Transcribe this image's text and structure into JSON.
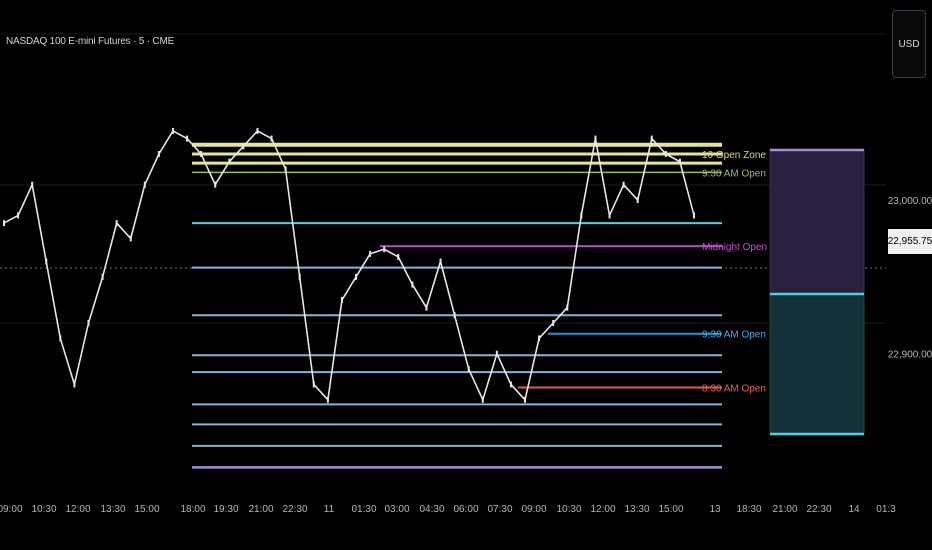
{
  "header": {
    "symbol": "NASDAQ 100 E-mini Futures · 5 · CME"
  },
  "currency_button": "USD",
  "last_price_label": "22,955.75",
  "colors": {
    "background": "#000000",
    "candles": "#e6e6e6",
    "grid": "#1a1a1a",
    "yellow_zone": "#e8e39a",
    "cyan": "#4dd0e1",
    "steel_blue": "#8fb0d8",
    "purple": "#a68ddb",
    "magenta": "#c041c9",
    "blue_open": "#2f8fd8",
    "red_open": "#e05a4a",
    "box_upper": "#2a1f3d",
    "box_lower": "#123237"
  },
  "chart_data": {
    "type": "line",
    "series": [
      {
        "values": [
          22985,
          22990,
          23010,
          22960,
          22910,
          22880,
          22920,
          22950,
          22985,
          22975,
          23010,
          23030,
          23045,
          23040,
          23030,
          23010,
          23025,
          23035,
          23045,
          23040,
          23020,
          22950,
          22880,
          22870,
          22935,
          22950,
          22965,
          22968,
          22963,
          22945,
          22930,
          22960,
          22925,
          22890,
          22870,
          22900,
          22880,
          22870,
          22910,
          22920,
          22930,
          22990,
          23040,
          22990,
          23010,
          23000,
          23040,
          23030,
          23025,
          22990
        ]
      }
    ],
    "x_ticks": [
      "09:00",
      "10:30",
      "12:00",
      "13:30",
      "15:00",
      "18:00",
      "19:30",
      "21:00",
      "22:30",
      "11",
      "01:30",
      "03:00",
      "04:30",
      "06:00",
      "07:30",
      "09:00",
      "10:30",
      "12:00",
      "13:30",
      "15:00",
      "13",
      "18:30",
      "21:00",
      "22:30",
      "14",
      "01:3"
    ],
    "y_ticks": [
      "23,000.00",
      "22,900.00"
    ],
    "ylim": [
      22810,
      23125
    ],
    "last_price": 22955.75,
    "levels": [
      {
        "price": 23036,
        "label": ""
      },
      {
        "price": 23030,
        "label": "10 Open Zone"
      },
      {
        "price": 23024,
        "label": ""
      },
      {
        "price": 23018,
        "label": "9:30 AM Open"
      },
      {
        "price": 22985,
        "label": ""
      },
      {
        "price": 22970,
        "label": "Midnight Open"
      },
      {
        "price": 22956,
        "label": ""
      },
      {
        "price": 22925,
        "label": ""
      },
      {
        "price": 22913,
        "label": "9:30 AM Open"
      },
      {
        "price": 22899,
        "label": ""
      },
      {
        "price": 22888,
        "label": ""
      },
      {
        "price": 22878,
        "label": "8:30 AM Open"
      },
      {
        "price": 22867,
        "label": ""
      },
      {
        "price": 22854,
        "label": ""
      },
      {
        "price": 22840,
        "label": ""
      },
      {
        "price": 22826,
        "label": ""
      }
    ]
  }
}
